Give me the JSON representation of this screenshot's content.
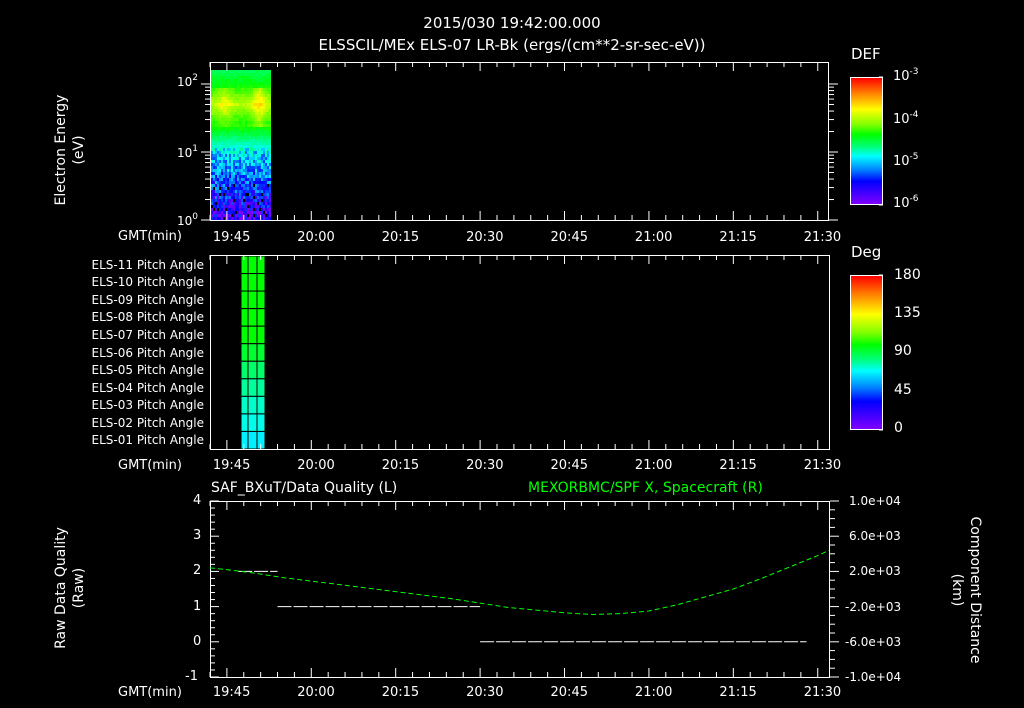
{
  "header": {
    "timestamp": "2015/030 19:42:00.000",
    "subtitle": "ELSSCIL/MEx ELS-07 LR-Bk  (ergs/(cm**2-sr-sec-eV))"
  },
  "colors": {
    "background": "#000000",
    "axes": "#ffffff",
    "spacecraft_line": "#00ff00",
    "quality_line": "#ffffff"
  },
  "panel1": {
    "ylabel_line1": "Electron Energy",
    "ylabel_line2": "(eV)",
    "yticks": [
      {
        "base": "10",
        "exp": "2"
      },
      {
        "base": "10",
        "exp": "1"
      },
      {
        "base": "10",
        "exp": "0"
      }
    ],
    "xaxis_label": "GMT(min)",
    "xticks": [
      "19:45",
      "20:00",
      "20:15",
      "20:30",
      "20:45",
      "21:00",
      "21:15",
      "21:30"
    ],
    "colorbar": {
      "title": "DEF",
      "ticks": [
        {
          "base": "10",
          "exp": "-3"
        },
        {
          "base": "10",
          "exp": "-4"
        },
        {
          "base": "10",
          "exp": "-5"
        },
        {
          "base": "10",
          "exp": "-6"
        }
      ]
    }
  },
  "panel2": {
    "rows": [
      "ELS-11 Pitch Angle",
      "ELS-10 Pitch Angle",
      "ELS-09 Pitch Angle",
      "ELS-08 Pitch Angle",
      "ELS-07 Pitch Angle",
      "ELS-06 Pitch Angle",
      "ELS-05 Pitch Angle",
      "ELS-04 Pitch Angle",
      "ELS-03 Pitch Angle",
      "ELS-02 Pitch Angle",
      "ELS-01 Pitch Angle"
    ],
    "xaxis_label": "GMT(min)",
    "xticks": [
      "19:45",
      "20:00",
      "20:15",
      "20:30",
      "20:45",
      "21:00",
      "21:15",
      "21:30"
    ],
    "colorbar": {
      "title": "Deg",
      "ticks": [
        "180",
        "135",
        "90",
        "45",
        "0"
      ]
    }
  },
  "panel3": {
    "left_title": "SAF_BXuT/Data Quality (L)",
    "right_title": "MEXORBMC/SPF X, Spacecraft (R)",
    "ylabel_left_line1": "Raw Data Quality",
    "ylabel_left_line2": "(Raw)",
    "ylabel_right_line1": "Component Distance",
    "ylabel_right_line2": "(km)",
    "yticks_left": [
      "4",
      "3",
      "2",
      "1",
      "0",
      "-1"
    ],
    "yticks_right": [
      "1.0e+04",
      "6.0e+03",
      "2.0e+03",
      "-2.0e+03",
      "-6.0e+03",
      "-1.0e+04"
    ],
    "xaxis_label": "GMT(min)",
    "xticks": [
      "19:45",
      "20:00",
      "20:15",
      "20:30",
      "20:45",
      "21:00",
      "21:15",
      "21:30"
    ]
  },
  "chart_data": [
    {
      "type": "heatmap",
      "title": "ELSSCIL/MEx ELS-07 LR-Bk (ergs/(cm**2-sr-sec-eV))",
      "xlabel": "GMT(min)",
      "ylabel": "Electron Energy (eV)",
      "yscale": "log",
      "ylim": [
        1,
        150
      ],
      "xlim": [
        "19:42",
        "21:32"
      ],
      "xticks": [
        "19:45",
        "20:00",
        "20:15",
        "20:30",
        "20:45",
        "21:00",
        "21:15",
        "21:30"
      ],
      "data_time_range": [
        "19:42",
        "19:53"
      ],
      "colorbar": {
        "label": "DEF",
        "scale": "log",
        "range": [
          1e-06,
          0.001
        ]
      },
      "description": "Peak DEF (~3e-4, orange) near 40-60 eV; decreasing to ~1e-5 (cyan) near 7-10 eV and ~1e-6 (blue/violet) below 5 eV. Data only from 19:42 to ~19:53."
    },
    {
      "type": "heatmap",
      "title": "ELS Pitch Angle",
      "xlabel": "GMT(min)",
      "categories": [
        "ELS-11",
        "ELS-10",
        "ELS-09",
        "ELS-08",
        "ELS-07",
        "ELS-06",
        "ELS-05",
        "ELS-04",
        "ELS-03",
        "ELS-02",
        "ELS-01"
      ],
      "data_time_range": [
        "19:47",
        "19:53"
      ],
      "colorbar": {
        "label": "Deg",
        "range": [
          0,
          180
        ]
      },
      "values_deg": [
        95,
        95,
        95,
        95,
        95,
        92,
        85,
        80,
        72,
        65,
        62
      ]
    },
    {
      "type": "line",
      "title": "SAF_BXuT/Data Quality (L) ; MEXORBMC/SPF X, Spacecraft (R)",
      "xlabel": "GMT(min)",
      "ylabel": "Raw Data Quality (Raw)",
      "ylabel_right": "Component Distance (km)",
      "ylim": [
        -1,
        4
      ],
      "ylim_right": [
        -10000,
        10000
      ],
      "series": [
        {
          "name": "Data Quality (L)",
          "color": "#ffffff",
          "style": "dashed-steps",
          "segments": [
            {
              "x": [
                "19:47",
                "19:54"
              ],
              "y": 2
            },
            {
              "x": [
                "19:54",
                "20:30"
              ],
              "y": 1
            },
            {
              "x": [
                "20:30",
                "21:28"
              ],
              "y": 0
            }
          ]
        },
        {
          "name": "SPF X, Spacecraft (R)",
          "color": "#00ff00",
          "style": "dashed",
          "x": [
            "19:42",
            "19:45",
            "19:50",
            "19:55",
            "20:00",
            "20:05",
            "20:10",
            "20:15",
            "20:20",
            "20:25",
            "20:30",
            "20:35",
            "20:40",
            "20:45",
            "20:50",
            "20:55",
            "21:00",
            "21:05",
            "21:10",
            "21:15",
            "21:20",
            "21:25",
            "21:30",
            "21:32"
          ],
          "y": [
            2400,
            2200,
            1800,
            1300,
            900,
            500,
            100,
            -300,
            -700,
            -1100,
            -1600,
            -2100,
            -2400,
            -2700,
            -2900,
            -2800,
            -2500,
            -1800,
            -900,
            0,
            1200,
            2500,
            3800,
            4400
          ]
        }
      ]
    }
  ]
}
